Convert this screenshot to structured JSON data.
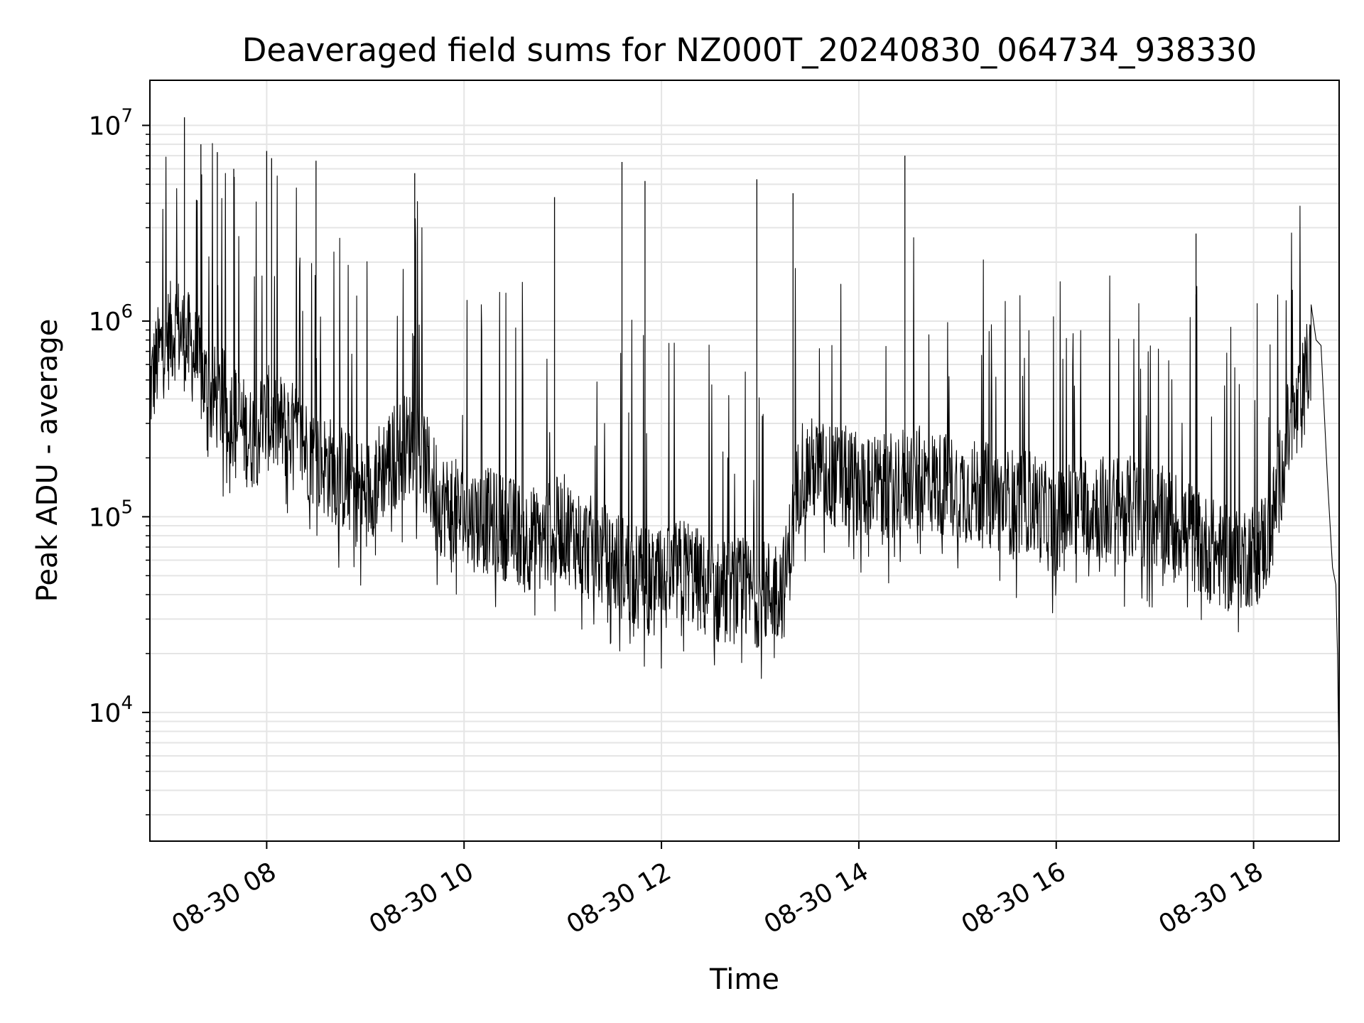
{
  "chart_data": {
    "type": "line",
    "title": "Deaveraged field sums for NZ000T_20240830_064734_938330",
    "xlabel": "Time",
    "ylabel": "Peak ADU - average",
    "yscale": "log",
    "ylim": [
      2200,
      17000000
    ],
    "xlim": [
      "2024-08-30 06:49",
      "2024-08-30 18:52"
    ],
    "grid": true,
    "line_color": "#000000",
    "grid_color": "#e5e5e5",
    "x_ticks": [
      {
        "t": "2024-08-30 08:00",
        "label": "08-30 08"
      },
      {
        "t": "2024-08-30 10:00",
        "label": "08-30 10"
      },
      {
        "t": "2024-08-30 12:00",
        "label": "08-30 12"
      },
      {
        "t": "2024-08-30 14:00",
        "label": "08-30 14"
      },
      {
        "t": "2024-08-30 16:00",
        "label": "08-30 16"
      },
      {
        "t": "2024-08-30 18:00",
        "label": "08-30 18"
      }
    ],
    "y_ticks": [
      {
        "value": 10000,
        "base": "10",
        "exp": "4"
      },
      {
        "value": 100000,
        "base": "10",
        "exp": "5"
      },
      {
        "value": 1000000,
        "base": "10",
        "exp": "6"
      },
      {
        "value": 10000000,
        "base": "10",
        "exp": "7"
      }
    ],
    "series": [
      {
        "x": [
          "2024-08-30 06:49",
          "2024-08-30 06:55",
          "2024-08-30 07:05",
          "2024-08-30 07:15",
          "2024-08-30 07:25",
          "2024-08-30 07:35",
          "2024-08-30 07:50",
          "2024-08-30 08:00",
          "2024-08-30 08:15",
          "2024-08-30 08:30",
          "2024-08-30 08:45",
          "2024-08-30 09:00",
          "2024-08-30 09:15",
          "2024-08-30 09:30",
          "2024-08-30 09:45",
          "2024-08-30 10:00",
          "2024-08-30 10:15",
          "2024-08-30 10:30",
          "2024-08-30 10:45",
          "2024-08-30 11:00",
          "2024-08-30 11:15",
          "2024-08-30 11:30",
          "2024-08-30 11:45",
          "2024-08-30 12:00",
          "2024-08-30 12:15",
          "2024-08-30 12:30",
          "2024-08-30 12:45",
          "2024-08-30 13:00",
          "2024-08-30 13:15",
          "2024-08-30 13:25",
          "2024-08-30 13:45",
          "2024-08-30 14:00",
          "2024-08-30 14:15",
          "2024-08-30 14:30",
          "2024-08-30 14:45",
          "2024-08-30 15:00",
          "2024-08-30 15:15",
          "2024-08-30 15:30",
          "2024-08-30 15:45",
          "2024-08-30 16:00",
          "2024-08-30 16:15",
          "2024-08-30 16:30",
          "2024-08-30 16:45",
          "2024-08-30 17:00",
          "2024-08-30 17:15",
          "2024-08-30 17:30",
          "2024-08-30 17:45",
          "2024-08-30 18:00",
          "2024-08-30 18:10",
          "2024-08-30 18:20",
          "2024-08-30 18:28",
          "2024-08-30 18:35",
          "2024-08-30 18:38",
          "2024-08-30 18:41",
          "2024-08-30 18:45",
          "2024-08-30 18:48",
          "2024-08-30 18:50",
          "2024-08-30 18:51",
          "2024-08-30 18:52"
        ],
        "y": [
          450000,
          700000,
          950000,
          700000,
          420000,
          380000,
          250000,
          320000,
          270000,
          200000,
          160000,
          130000,
          200000,
          250000,
          120000,
          100000,
          95000,
          85000,
          75000,
          90000,
          70000,
          60000,
          50000,
          45000,
          55000,
          40000,
          42000,
          40000,
          45000,
          180000,
          160000,
          150000,
          140000,
          160000,
          150000,
          140000,
          130000,
          120000,
          120000,
          90000,
          120000,
          110000,
          110000,
          100000,
          90000,
          70000,
          60000,
          65000,
          80000,
          250000,
          350000,
          700000,
          800000,
          750000,
          150000,
          55000,
          45000,
          20000,
          4500
        ],
        "spikes_x": [
          "2024-08-30 07:10",
          "2024-08-30 07:20",
          "2024-08-30 07:30",
          "2024-08-30 07:40",
          "2024-08-30 08:00",
          "2024-08-30 08:03",
          "2024-08-30 08:30",
          "2024-08-30 09:30",
          "2024-08-30 10:55",
          "2024-08-30 11:36",
          "2024-08-30 11:50",
          "2024-08-30 12:58",
          "2024-08-30 13:20",
          "2024-08-30 14:28",
          "2024-08-30 17:25"
        ],
        "spikes_y": [
          11000000,
          8000000,
          7300000,
          6000000,
          7400000,
          6800000,
          6600000,
          5700000,
          4300000,
          6500000,
          5200000,
          5300000,
          4500000,
          7000000,
          2800000
        ]
      }
    ]
  }
}
